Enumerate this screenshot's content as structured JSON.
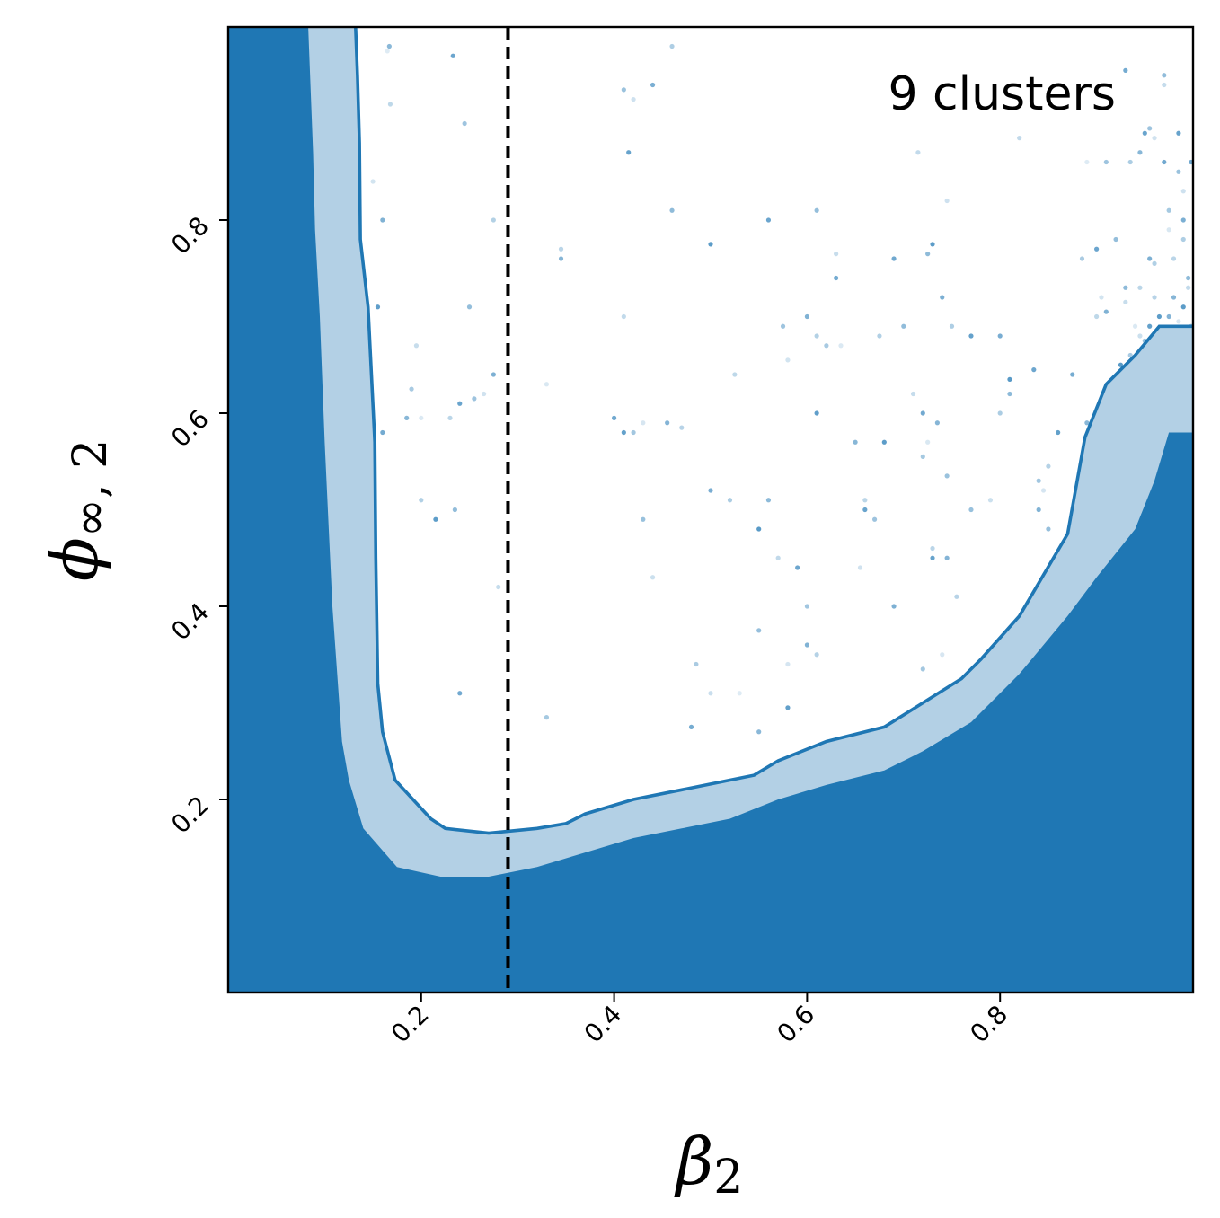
{
  "chart_data": {
    "type": "area",
    "annotation": "9 clusters",
    "xlabel": "β",
    "xlabel_sub": "2",
    "ylabel": "ϕ",
    "ylabel_sub": "∞, 2",
    "xlim": [
      0.0,
      1.0
    ],
    "ylim": [
      0.0,
      1.0
    ],
    "xticks": [
      0.2,
      0.4,
      0.6,
      0.8
    ],
    "xtick_labels": [
      "0.2",
      "0.4",
      "0.6",
      "0.8"
    ],
    "yticks": [
      0.2,
      0.4,
      0.6,
      0.8
    ],
    "ytick_labels": [
      "0.2",
      "0.4",
      "0.6",
      "0.8"
    ],
    "reference_line": {
      "x": 0.29,
      "style": "dashed",
      "color": "#000000"
    },
    "colors": {
      "dark": "#1f77b4",
      "light": "#b3d0e5",
      "points": "#1f77b4"
    },
    "inner_region": [
      [
        0.0,
        1.0
      ],
      [
        0.083,
        1.0
      ],
      [
        0.088,
        0.87
      ],
      [
        0.09,
        0.79
      ],
      [
        0.095,
        0.7
      ],
      [
        0.1,
        0.57
      ],
      [
        0.108,
        0.4
      ],
      [
        0.118,
        0.26
      ],
      [
        0.125,
        0.22
      ],
      [
        0.14,
        0.17
      ],
      [
        0.175,
        0.13
      ],
      [
        0.22,
        0.12
      ],
      [
        0.27,
        0.12
      ],
      [
        0.32,
        0.13
      ],
      [
        0.37,
        0.145
      ],
      [
        0.42,
        0.16
      ],
      [
        0.47,
        0.17
      ],
      [
        0.52,
        0.18
      ],
      [
        0.57,
        0.2
      ],
      [
        0.62,
        0.215
      ],
      [
        0.68,
        0.23
      ],
      [
        0.72,
        0.25
      ],
      [
        0.77,
        0.28
      ],
      [
        0.82,
        0.33
      ],
      [
        0.87,
        0.39
      ],
      [
        0.9,
        0.43
      ],
      [
        0.94,
        0.48
      ],
      [
        0.96,
        0.53
      ],
      [
        0.975,
        0.58
      ],
      [
        1.0,
        0.58
      ],
      [
        1.0,
        0.0
      ],
      [
        0.0,
        0.0
      ]
    ],
    "outer_boundary": [
      [
        0.132,
        1.0
      ],
      [
        0.134,
        0.95
      ],
      [
        0.136,
        0.88
      ],
      [
        0.137,
        0.78
      ],
      [
        0.145,
        0.71
      ],
      [
        0.152,
        0.57
      ],
      [
        0.153,
        0.45
      ],
      [
        0.155,
        0.32
      ],
      [
        0.16,
        0.27
      ],
      [
        0.173,
        0.22
      ],
      [
        0.21,
        0.18
      ],
      [
        0.225,
        0.17
      ],
      [
        0.27,
        0.165
      ],
      [
        0.32,
        0.17
      ],
      [
        0.35,
        0.175
      ],
      [
        0.37,
        0.185
      ],
      [
        0.42,
        0.2
      ],
      [
        0.47,
        0.21
      ],
      [
        0.52,
        0.22
      ],
      [
        0.545,
        0.225
      ],
      [
        0.57,
        0.24
      ],
      [
        0.62,
        0.26
      ],
      [
        0.68,
        0.275
      ],
      [
        0.72,
        0.3
      ],
      [
        0.76,
        0.325
      ],
      [
        0.78,
        0.345
      ],
      [
        0.82,
        0.39
      ],
      [
        0.87,
        0.475
      ],
      [
        0.888,
        0.575
      ],
      [
        0.91,
        0.63
      ],
      [
        0.94,
        0.66
      ],
      [
        0.965,
        0.69
      ],
      [
        1.0,
        0.69
      ]
    ],
    "points": [
      [
        0.165,
        0.975
      ],
      [
        0.167,
        0.98
      ],
      [
        0.168,
        0.92
      ],
      [
        0.233,
        0.97
      ],
      [
        0.245,
        0.9
      ],
      [
        0.15,
        0.84
      ],
      [
        0.16,
        0.8
      ],
      [
        0.275,
        0.8
      ],
      [
        0.155,
        0.71
      ],
      [
        0.25,
        0.71
      ],
      [
        0.195,
        0.67
      ],
      [
        0.16,
        0.58
      ],
      [
        0.19,
        0.625
      ],
      [
        0.2,
        0.595
      ],
      [
        0.185,
        0.595
      ],
      [
        0.23,
        0.595
      ],
      [
        0.24,
        0.61
      ],
      [
        0.255,
        0.615
      ],
      [
        0.265,
        0.62
      ],
      [
        0.275,
        0.64
      ],
      [
        0.2,
        0.51
      ],
      [
        0.215,
        0.49
      ],
      [
        0.235,
        0.5
      ],
      [
        0.28,
        0.42
      ],
      [
        0.24,
        0.31
      ],
      [
        0.33,
        0.285
      ],
      [
        0.33,
        0.63
      ],
      [
        0.345,
        0.76
      ],
      [
        0.345,
        0.77
      ],
      [
        0.415,
        0.87
      ],
      [
        0.41,
        0.935
      ],
      [
        0.42,
        0.925
      ],
      [
        0.44,
        0.94
      ],
      [
        0.46,
        0.98
      ],
      [
        0.5,
        0.775
      ],
      [
        0.46,
        0.81
      ],
      [
        0.41,
        0.7
      ],
      [
        0.4,
        0.595
      ],
      [
        0.42,
        0.58
      ],
      [
        0.43,
        0.59
      ],
      [
        0.455,
        0.59
      ],
      [
        0.47,
        0.585
      ],
      [
        0.41,
        0.58
      ],
      [
        0.43,
        0.49
      ],
      [
        0.44,
        0.43
      ],
      [
        0.5,
        0.52
      ],
      [
        0.52,
        0.51
      ],
      [
        0.55,
        0.48
      ],
      [
        0.56,
        0.51
      ],
      [
        0.57,
        0.45
      ],
      [
        0.59,
        0.44
      ],
      [
        0.6,
        0.4
      ],
      [
        0.58,
        0.34
      ],
      [
        0.6,
        0.36
      ],
      [
        0.61,
        0.35
      ],
      [
        0.58,
        0.295
      ],
      [
        0.55,
        0.375
      ],
      [
        0.5,
        0.31
      ],
      [
        0.48,
        0.275
      ],
      [
        0.485,
        0.34
      ],
      [
        0.53,
        0.31
      ],
      [
        0.55,
        0.27
      ],
      [
        0.525,
        0.64
      ],
      [
        0.56,
        0.8
      ],
      [
        0.575,
        0.69
      ],
      [
        0.58,
        0.655
      ],
      [
        0.6,
        0.7
      ],
      [
        0.61,
        0.68
      ],
      [
        0.61,
        0.6
      ],
      [
        0.61,
        0.81
      ],
      [
        0.63,
        0.765
      ],
      [
        0.63,
        0.74
      ],
      [
        0.62,
        0.67
      ],
      [
        0.635,
        0.67
      ],
      [
        0.65,
        0.57
      ],
      [
        0.66,
        0.51
      ],
      [
        0.66,
        0.5
      ],
      [
        0.67,
        0.49
      ],
      [
        0.655,
        0.44
      ],
      [
        0.69,
        0.4
      ],
      [
        0.675,
        0.68
      ],
      [
        0.68,
        0.57
      ],
      [
        0.7,
        0.69
      ],
      [
        0.71,
        0.62
      ],
      [
        0.72,
        0.6
      ],
      [
        0.72,
        0.555
      ],
      [
        0.725,
        0.57
      ],
      [
        0.735,
        0.59
      ],
      [
        0.73,
        0.46
      ],
      [
        0.73,
        0.45
      ],
      [
        0.745,
        0.535
      ],
      [
        0.745,
        0.82
      ],
      [
        0.74,
        0.72
      ],
      [
        0.75,
        0.69
      ],
      [
        0.73,
        0.775
      ],
      [
        0.725,
        0.765
      ],
      [
        0.715,
        0.87
      ],
      [
        0.69,
        0.76
      ],
      [
        0.72,
        0.335
      ],
      [
        0.74,
        0.35
      ],
      [
        0.745,
        0.45
      ],
      [
        0.755,
        0.41
      ],
      [
        0.77,
        0.68
      ],
      [
        0.77,
        0.5
      ],
      [
        0.79,
        0.51
      ],
      [
        0.8,
        0.68
      ],
      [
        0.8,
        0.6
      ],
      [
        0.81,
        0.635
      ],
      [
        0.81,
        0.62
      ],
      [
        0.82,
        0.885
      ],
      [
        0.835,
        0.645
      ],
      [
        0.84,
        0.53
      ],
      [
        0.845,
        0.52
      ],
      [
        0.84,
        0.5
      ],
      [
        0.85,
        0.545
      ],
      [
        0.86,
        0.58
      ],
      [
        0.85,
        0.48
      ],
      [
        0.86,
        0.45
      ],
      [
        0.875,
        0.64
      ],
      [
        0.885,
        0.76
      ],
      [
        0.89,
        0.86
      ],
      [
        0.89,
        0.59
      ],
      [
        0.9,
        0.7
      ],
      [
        0.9,
        0.77
      ],
      [
        0.91,
        0.86
      ],
      [
        0.905,
        0.72
      ],
      [
        0.91,
        0.705
      ],
      [
        0.9,
        0.55
      ],
      [
        0.91,
        0.56
      ],
      [
        0.92,
        0.78
      ],
      [
        0.93,
        0.715
      ],
      [
        0.93,
        0.955
      ],
      [
        0.935,
        0.66
      ],
      [
        0.94,
        0.69
      ],
      [
        0.945,
        0.87
      ],
      [
        0.945,
        0.73
      ],
      [
        0.95,
        0.89
      ],
      [
        0.955,
        0.895
      ],
      [
        0.96,
        0.885
      ],
      [
        0.955,
        0.76
      ],
      [
        0.96,
        0.755
      ],
      [
        0.965,
        0.7
      ],
      [
        0.97,
        0.95
      ],
      [
        0.97,
        0.94
      ],
      [
        0.97,
        0.86
      ],
      [
        0.975,
        0.81
      ],
      [
        0.975,
        0.79
      ],
      [
        0.98,
        0.72
      ],
      [
        0.98,
        0.76
      ],
      [
        0.985,
        0.89
      ],
      [
        0.985,
        0.85
      ],
      [
        0.99,
        0.83
      ],
      [
        0.99,
        0.8
      ],
      [
        0.99,
        0.78
      ],
      [
        0.99,
        0.71
      ],
      [
        0.995,
        0.74
      ],
      [
        0.995,
        0.73
      ],
      [
        0.998,
        0.86
      ],
      [
        0.998,
        0.69
      ],
      [
        0.985,
        0.695
      ],
      [
        0.975,
        0.7
      ],
      [
        0.96,
        0.72
      ],
      [
        0.955,
        0.69
      ],
      [
        0.95,
        0.675
      ],
      [
        0.945,
        0.68
      ],
      [
        0.94,
        0.65
      ],
      [
        0.935,
        0.86
      ],
      [
        0.925,
        0.65
      ],
      [
        0.93,
        0.73
      ],
      [
        0.92,
        0.625
      ]
    ]
  }
}
